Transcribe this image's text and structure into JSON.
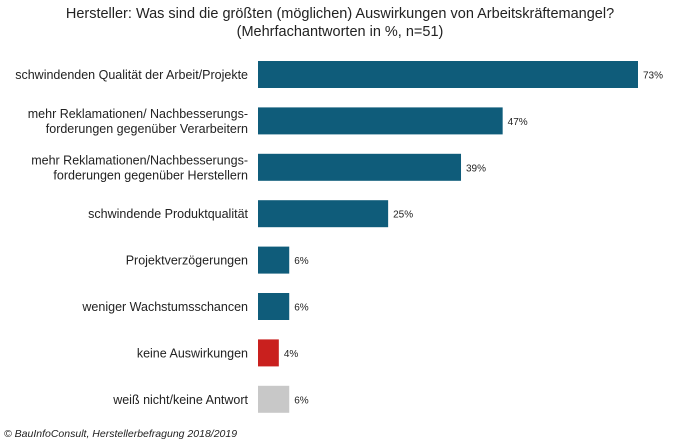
{
  "chart_data": {
    "type": "bar",
    "orientation": "horizontal",
    "title": "Hersteller: Was sind die größten (möglichen) Auswirkungen von Arbeitskräftemangel?",
    "subtitle": "(Mehrfachantworten in %, n=51)",
    "categories": [
      [
        "schwindenden Qualität der Arbeit/Projekte"
      ],
      [
        "mehr Reklamationen/ Nachbesserungs-",
        "forderungen gegenüber Verarbeitern"
      ],
      [
        "mehr Reklamationen/Nachbesserungs-",
        "forderungen gegenüber Herstellern"
      ],
      [
        "schwindende Produktqualität"
      ],
      [
        "Projektverzögerungen"
      ],
      [
        "weniger Wachstumsschancen"
      ],
      [
        "keine Auswirkungen"
      ],
      [
        "weiß nicht/keine Antwort"
      ]
    ],
    "values": [
      73,
      47,
      39,
      25,
      6,
      6,
      4,
      6
    ],
    "value_labels": [
      "73%",
      "47%",
      "39%",
      "25%",
      "6%",
      "6%",
      "4%",
      "6%"
    ],
    "colors": [
      "#0f5c7a",
      "#0f5c7a",
      "#0f5c7a",
      "#0f5c7a",
      "#0f5c7a",
      "#0f5c7a",
      "#c9201e",
      "#c8c8c8"
    ],
    "xlim": [
      0,
      73
    ],
    "grid": false,
    "legend": "none"
  },
  "footer": {
    "source": "© BauInfoConsult, Herstellerbefragung 2018/2019"
  }
}
